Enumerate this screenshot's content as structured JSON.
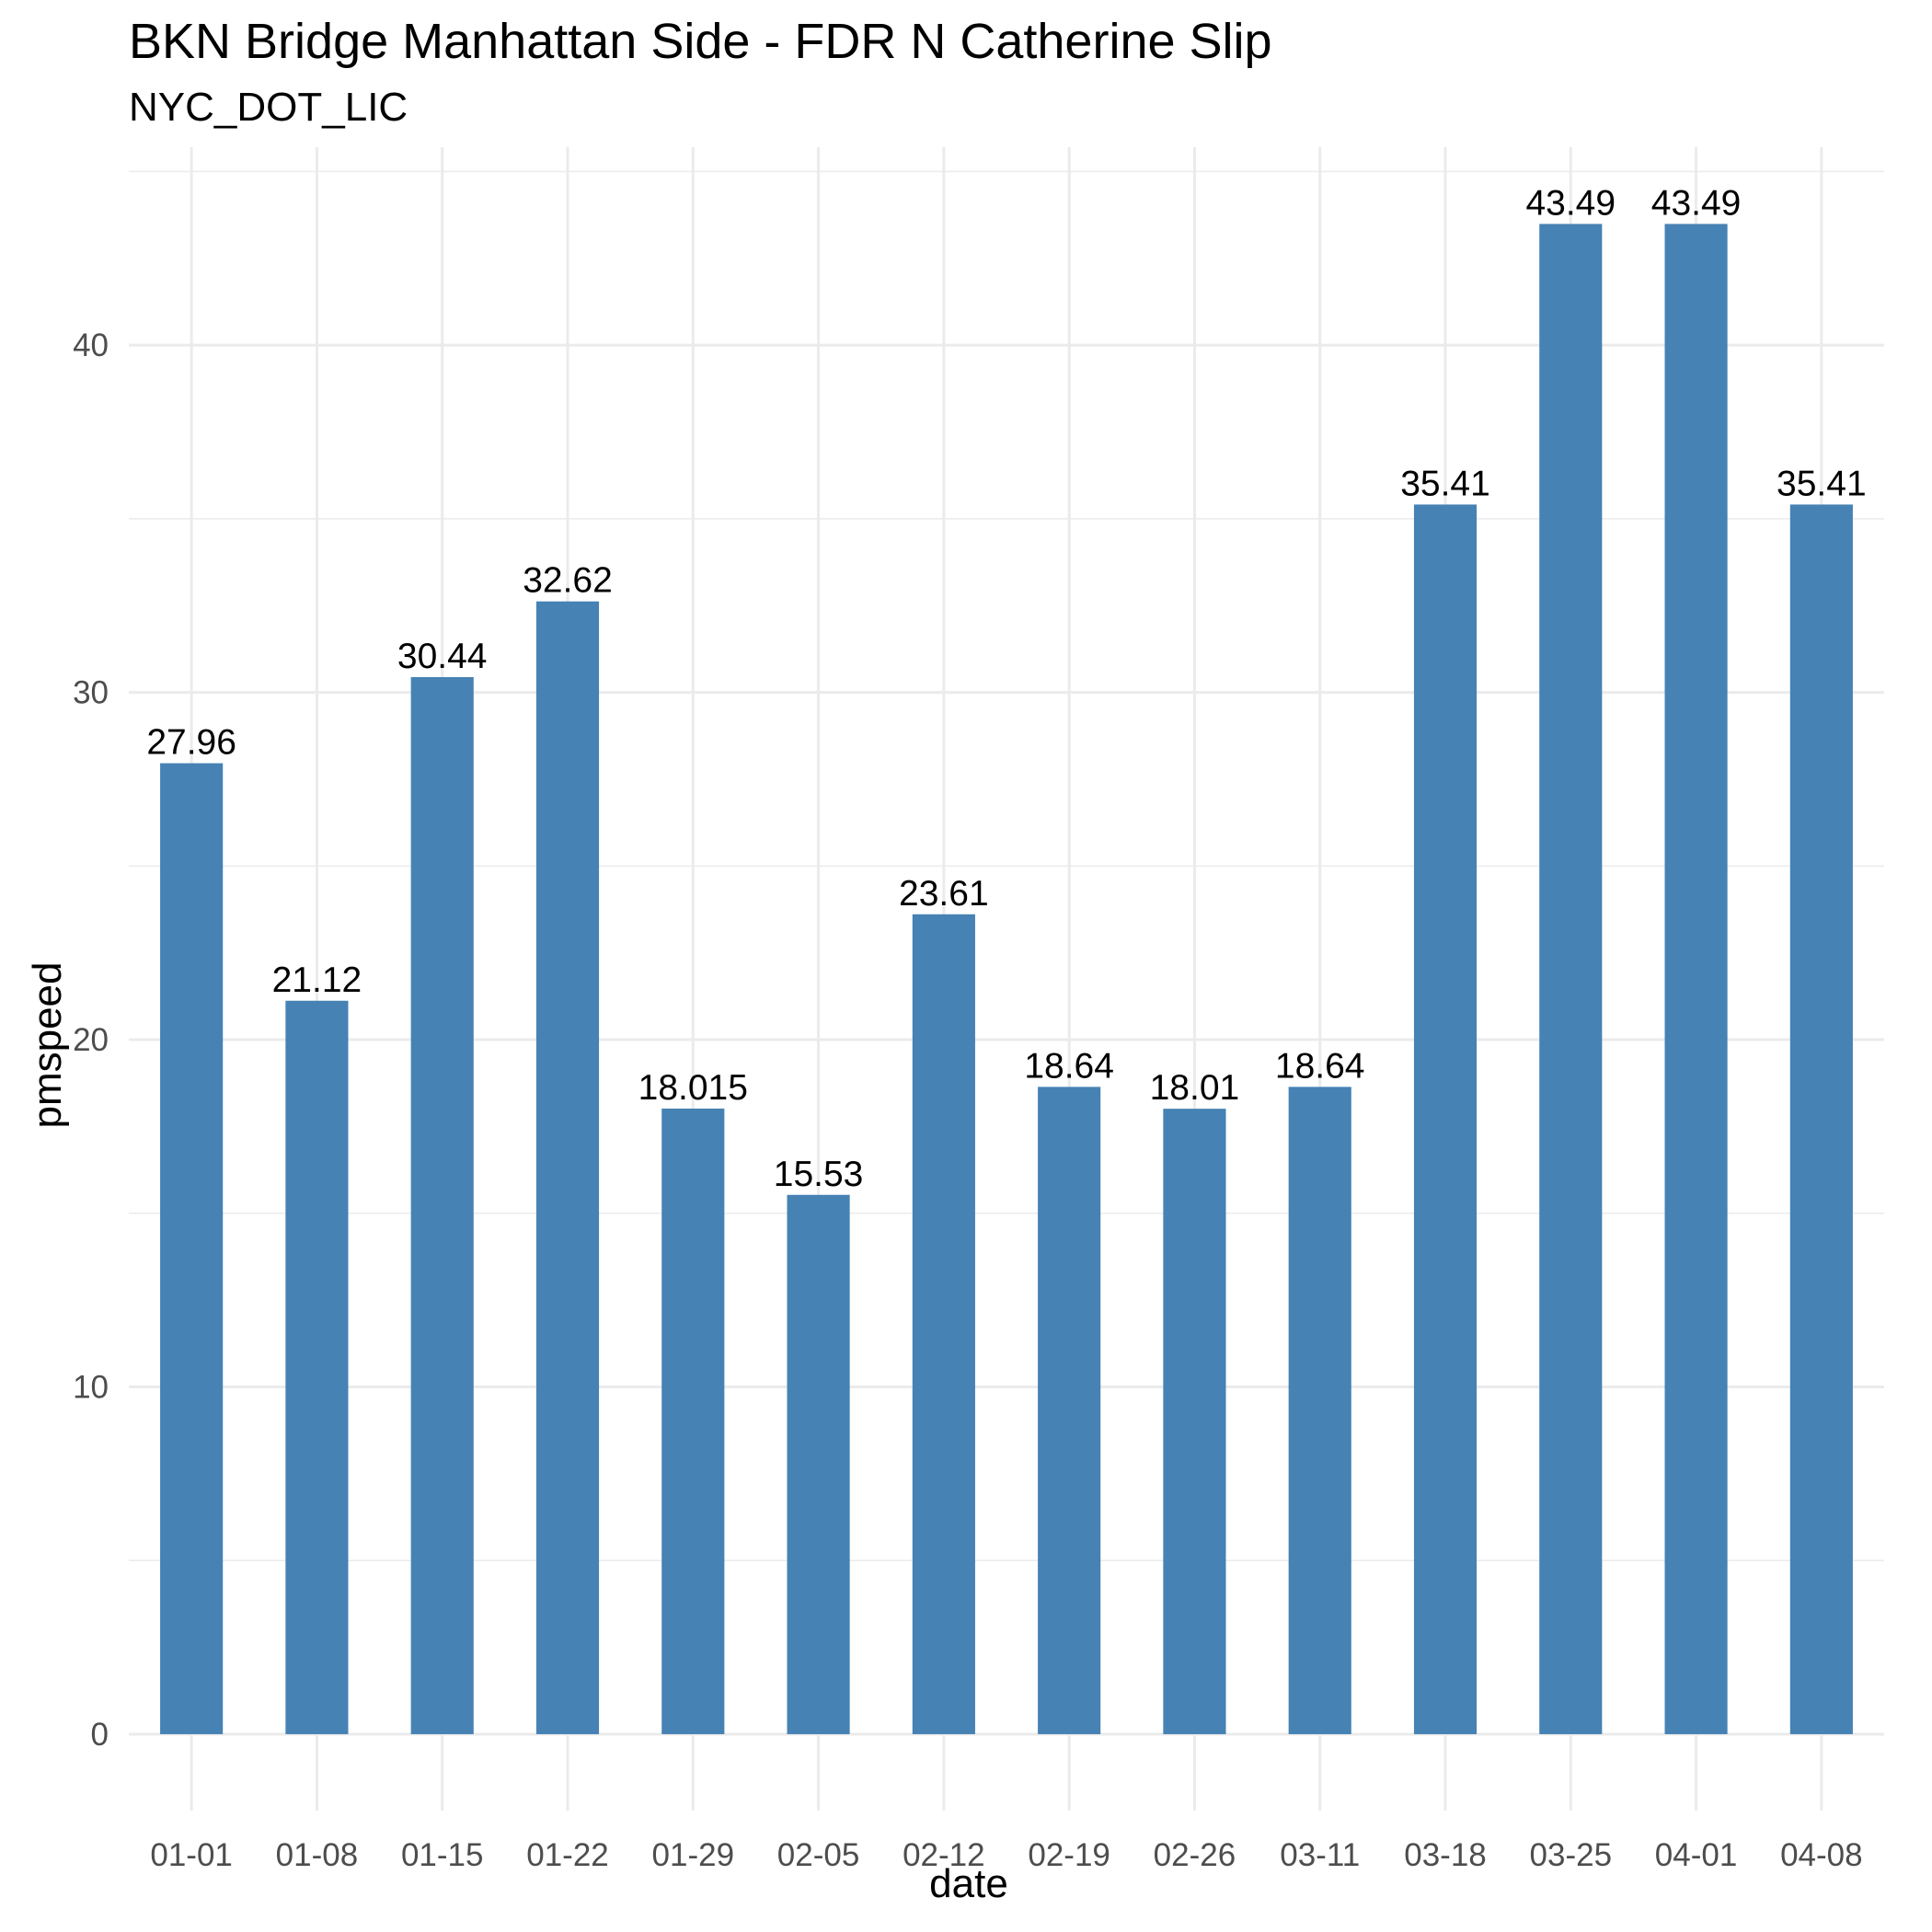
{
  "chart_data": {
    "type": "bar",
    "title": "BKN Bridge Manhattan Side - FDR N Catherine Slip",
    "subtitle": "NYC_DOT_LIC",
    "xlabel": "date",
    "ylabel": "pmspeed",
    "categories": [
      "01-01",
      "01-08",
      "01-15",
      "01-22",
      "01-29",
      "02-05",
      "02-12",
      "02-19",
      "02-26",
      "03-11",
      "03-18",
      "03-25",
      "04-01",
      "04-08"
    ],
    "values": [
      27.96,
      21.12,
      30.44,
      32.62,
      18.015,
      15.53,
      23.61,
      18.64,
      18.01,
      18.64,
      35.41,
      43.49,
      43.49,
      35.41
    ],
    "value_labels": [
      "27.96",
      "21.12",
      "30.44",
      "32.62",
      "18.015",
      "15.53",
      "23.61",
      "18.64",
      "18.01",
      "18.64",
      "35.41",
      "43.49",
      "43.49",
      "35.41"
    ],
    "ylim": [
      -2.2,
      45.7
    ],
    "yticks": [
      0,
      10,
      20,
      30,
      40
    ],
    "ytick_labels": [
      "0",
      "10",
      "20",
      "30",
      "40"
    ],
    "grid": true,
    "bar_color": "#4682B4",
    "grid_color": "#EBEBEB"
  }
}
